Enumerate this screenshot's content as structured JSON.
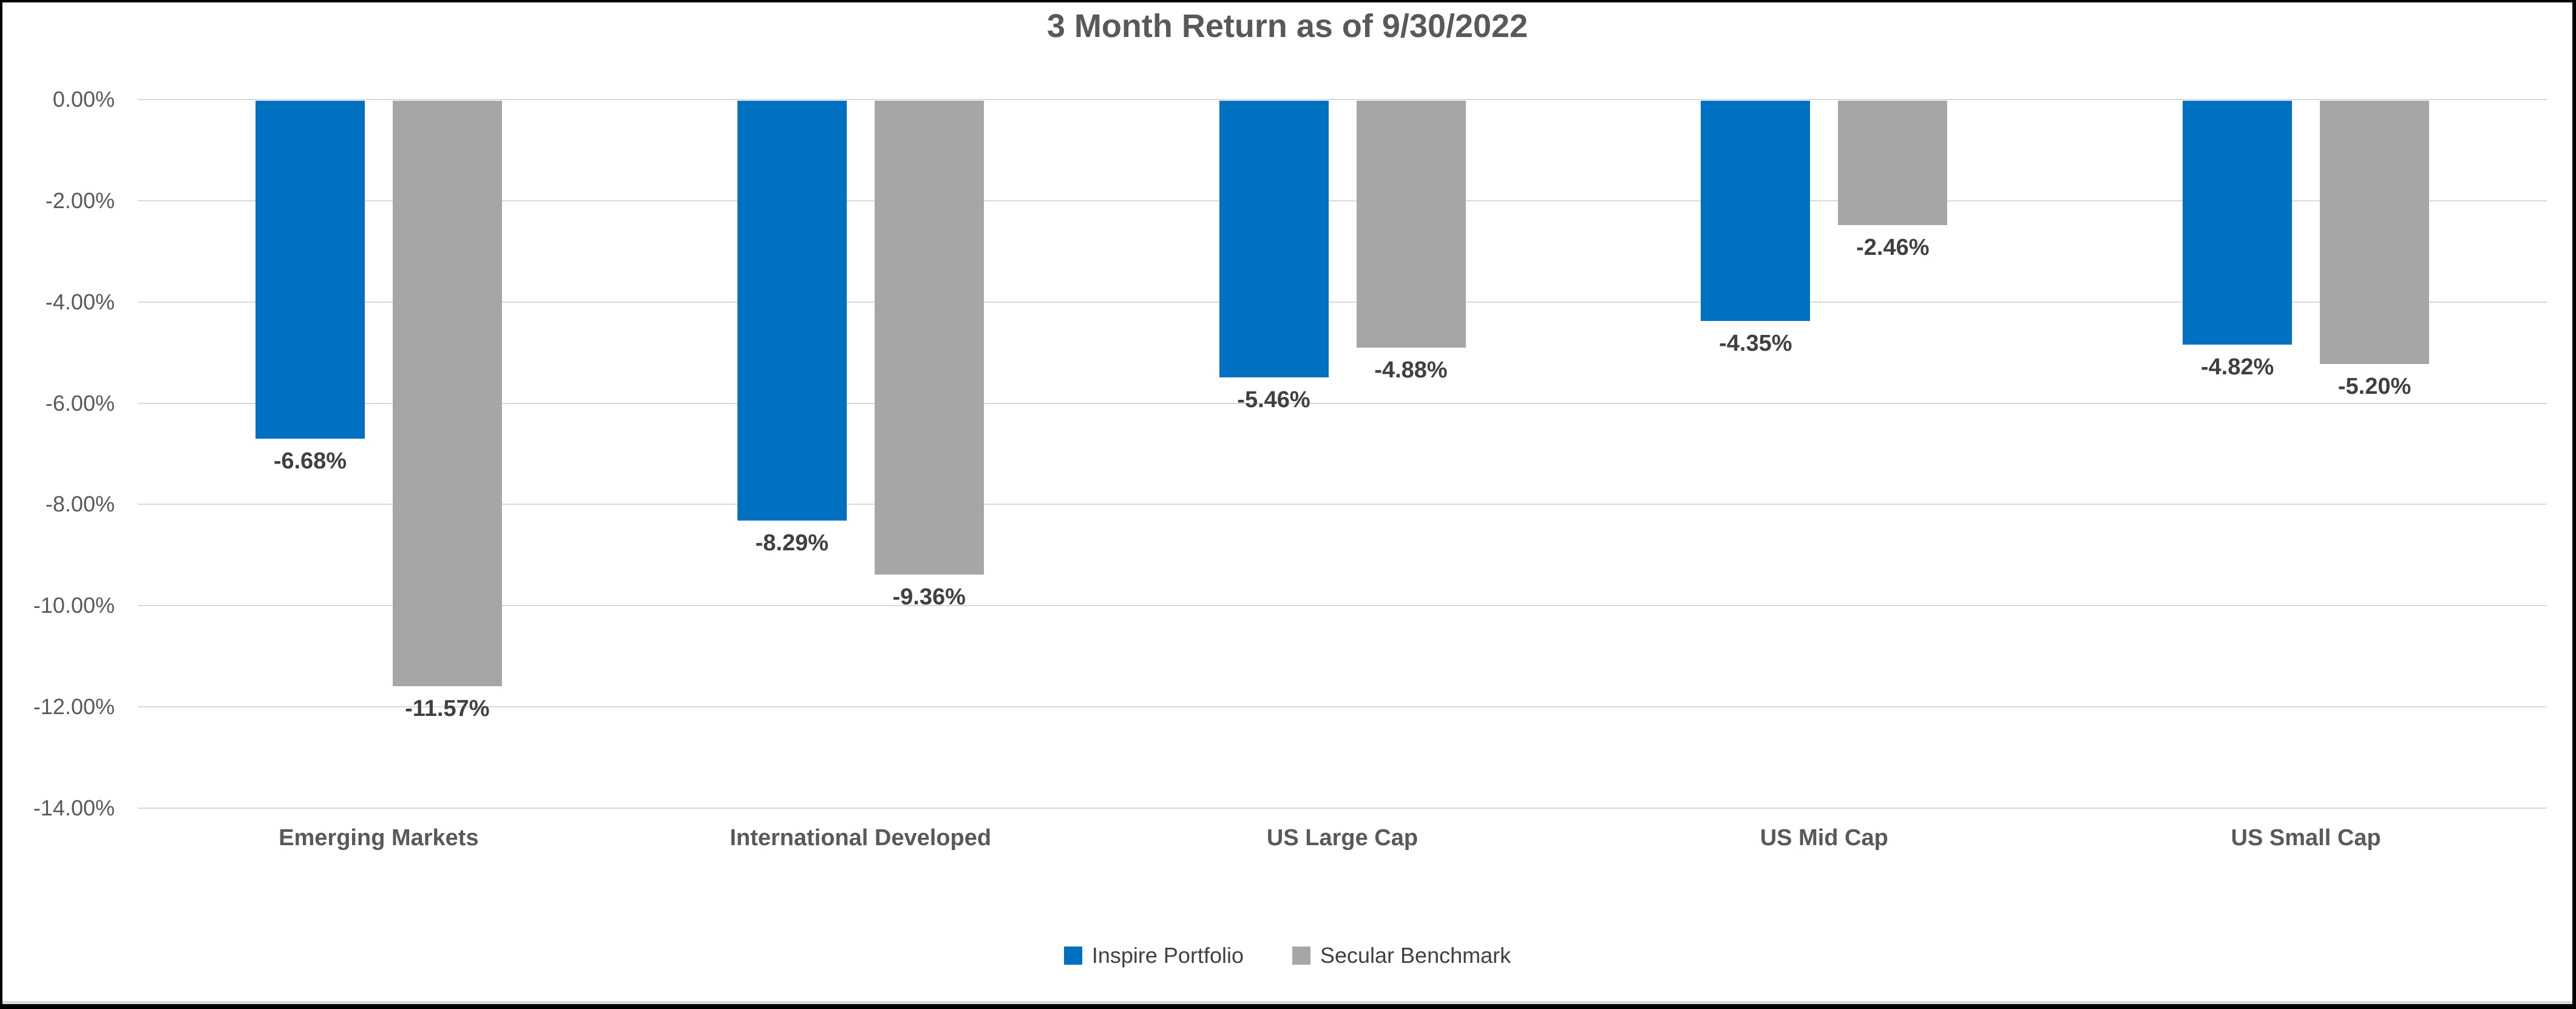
{
  "window": {
    "background": "#ffffff",
    "frame_border_color": "#000000"
  },
  "chart_data": {
    "type": "bar",
    "title": "3 Month Return as of 9/30/2022",
    "categories": [
      "Emerging Markets",
      "International Developed",
      "US Large Cap",
      "US Mid Cap",
      "US Small Cap"
    ],
    "series": [
      {
        "name": "Inspire Portfolio",
        "color": "#0070C0",
        "values": [
          -6.68,
          -8.29,
          -5.46,
          -4.35,
          -4.82
        ],
        "data_labels": [
          "-6.68%",
          "-8.29%",
          "-5.46%",
          "-4.35%",
          "-4.82%"
        ]
      },
      {
        "name": "Secular Benchmark",
        "color": "#A6A6A6",
        "values": [
          -11.57,
          -9.36,
          -4.88,
          -2.46,
          -5.2
        ],
        "data_labels": [
          "-11.57%",
          "-9.36%",
          "-4.88%",
          "-2.46%",
          "-5.20%"
        ]
      }
    ],
    "y_axis": {
      "tick_labels": [
        "0.00%",
        "-2.00%",
        "-4.00%",
        "-6.00%",
        "-8.00%",
        "-10.00%",
        "-12.00%",
        "-14.00%"
      ],
      "tick_values": [
        0,
        -2,
        -4,
        -6,
        -8,
        -10,
        -12,
        -14
      ],
      "max": 0,
      "min": -14
    },
    "xlabel": "",
    "ylabel": "",
    "grid": true,
    "legend_position": "bottom",
    "data_label_position": "outside-end-below-bar",
    "text_colors": {
      "title": "#595959",
      "axis_ticks": "#595959",
      "category_labels": "#595959",
      "data_labels": "#404040",
      "legend": "#404040",
      "gridline": "#d9d9d9"
    }
  }
}
